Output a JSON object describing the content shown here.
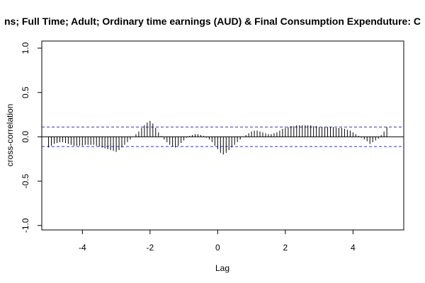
{
  "chart_data": {
    "type": "bar",
    "title": "ns; Full Time; Adult; Ordinary time earnings (AUD) & Final Consumption Expenduture: C",
    "xlabel": "Lag",
    "ylabel": "cross-correlation",
    "xlim": [
      -5.2,
      5.5
    ],
    "ylim": [
      -1.05,
      1.08
    ],
    "x_ticks": [
      -4,
      -2,
      0,
      2,
      4
    ],
    "x_tick_labels": [
      "-4",
      "-2",
      "0",
      "2",
      "4"
    ],
    "y_ticks": [
      -1.0,
      -0.5,
      0.0,
      0.5,
      1.0
    ],
    "y_tick_labels": [
      "-1.0",
      "-0.5",
      "0.0",
      "0.5",
      "1.0"
    ],
    "confidence_bound": 0.11,
    "grid": false,
    "colors": {
      "bars": "#000000",
      "zero_line": "#000000",
      "bounds": "#3333cc",
      "frame": "#000000"
    },
    "lags": [
      -5.0,
      -4.9167,
      -4.8333,
      -4.75,
      -4.6667,
      -4.5833,
      -4.5,
      -4.4167,
      -4.3333,
      -4.25,
      -4.1667,
      -4.0833,
      -4.0,
      -3.9167,
      -3.8333,
      -3.75,
      -3.6667,
      -3.5833,
      -3.5,
      -3.4167,
      -3.3333,
      -3.25,
      -3.1667,
      -3.0833,
      -3.0,
      -2.9167,
      -2.8333,
      -2.75,
      -2.6667,
      -2.5833,
      -2.5,
      -2.4167,
      -2.3333,
      -2.25,
      -2.1667,
      -2.0833,
      -2.0,
      -1.9167,
      -1.8333,
      -1.75,
      -1.6667,
      -1.5833,
      -1.5,
      -1.4167,
      -1.3333,
      -1.25,
      -1.1667,
      -1.0833,
      -1.0,
      -0.9167,
      -0.8333,
      -0.75,
      -0.6667,
      -0.5833,
      -0.5,
      -0.4167,
      -0.3333,
      -0.25,
      -0.1667,
      -0.0833,
      0.0,
      0.0833,
      0.1667,
      0.25,
      0.3333,
      0.4167,
      0.5,
      0.5833,
      0.6667,
      0.75,
      0.8333,
      0.9167,
      1.0,
      1.0833,
      1.1667,
      1.25,
      1.3333,
      1.4167,
      1.5,
      1.5833,
      1.6667,
      1.75,
      1.8333,
      1.9167,
      2.0,
      2.0833,
      2.1667,
      2.25,
      2.3333,
      2.4167,
      2.5,
      2.5833,
      2.6667,
      2.75,
      2.8333,
      2.9167,
      3.0,
      3.0833,
      3.1667,
      3.25,
      3.3333,
      3.4167,
      3.5,
      3.5833,
      3.6667,
      3.75,
      3.8333,
      3.9167,
      4.0,
      4.0833,
      4.1667,
      4.25,
      4.3333,
      4.4167,
      4.5,
      4.5833,
      4.6667,
      4.75,
      4.8333,
      4.9167,
      5.0
    ],
    "values": [
      -0.12,
      -0.1,
      -0.08,
      -0.07,
      -0.06,
      -0.06,
      -0.07,
      -0.08,
      -0.09,
      -0.1,
      -0.1,
      -0.1,
      -0.1,
      -0.09,
      -0.09,
      -0.09,
      -0.09,
      -0.1,
      -0.11,
      -0.12,
      -0.13,
      -0.14,
      -0.15,
      -0.16,
      -0.17,
      -0.15,
      -0.12,
      -0.09,
      -0.06,
      -0.03,
      0.0,
      0.03,
      0.06,
      0.1,
      0.13,
      0.16,
      0.18,
      0.15,
      0.1,
      0.05,
      0.01,
      -0.03,
      -0.06,
      -0.09,
      -0.11,
      -0.12,
      -0.1,
      -0.07,
      -0.04,
      -0.01,
      0.01,
      0.02,
      0.03,
      0.03,
      0.02,
      0.01,
      -0.01,
      -0.03,
      -0.06,
      -0.1,
      -0.14,
      -0.18,
      -0.2,
      -0.18,
      -0.15,
      -0.12,
      -0.09,
      -0.06,
      -0.03,
      0.0,
      0.02,
      0.04,
      0.06,
      0.07,
      0.07,
      0.06,
      0.05,
      0.04,
      0.03,
      0.03,
      0.04,
      0.05,
      0.07,
      0.09,
      0.1,
      0.11,
      0.12,
      0.12,
      0.13,
      0.13,
      0.13,
      0.13,
      0.13,
      0.13,
      0.12,
      0.12,
      0.11,
      0.11,
      0.11,
      0.11,
      0.11,
      0.11,
      0.1,
      0.1,
      0.1,
      0.09,
      0.08,
      0.07,
      0.05,
      0.03,
      0.01,
      -0.01,
      -0.03,
      -0.05,
      -0.08,
      -0.06,
      -0.04,
      -0.02,
      0.02,
      0.06,
      0.11
    ]
  }
}
